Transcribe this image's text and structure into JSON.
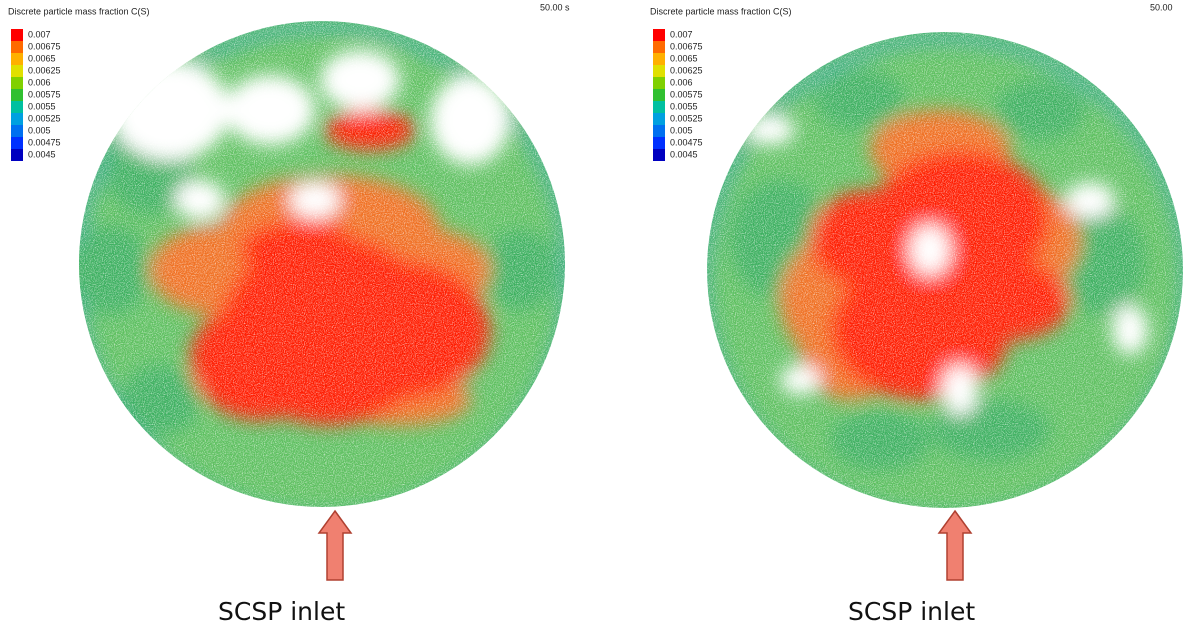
{
  "panels": [
    {
      "title": "Discrete particle mass fraction C(S)",
      "time": "50.00 s",
      "legend": [
        "0.007",
        "0.00675",
        "0.0065",
        "0.00625",
        "0.006",
        "0.00575",
        "0.0055",
        "0.00525",
        "0.005",
        "0.00475",
        "0.0045"
      ],
      "caption": "SCSP inlet"
    },
    {
      "title": "Discrete particle mass fraction C(S)",
      "time": "50.00",
      "legend": [
        "0.007",
        "0.00675",
        "0.0065",
        "0.00625",
        "0.006",
        "0.00575",
        "0.0055",
        "0.00525",
        "0.005",
        "0.00475",
        "0.0045"
      ],
      "caption": "SCSP inlet"
    }
  ],
  "legend_colors": [
    "#ff0000",
    "#ff6a00",
    "#ffb000",
    "#e0e000",
    "#80d000",
    "#30c030",
    "#00c0a0",
    "#00a0e0",
    "#0070f0",
    "#0030ff",
    "#0000c0"
  ]
}
